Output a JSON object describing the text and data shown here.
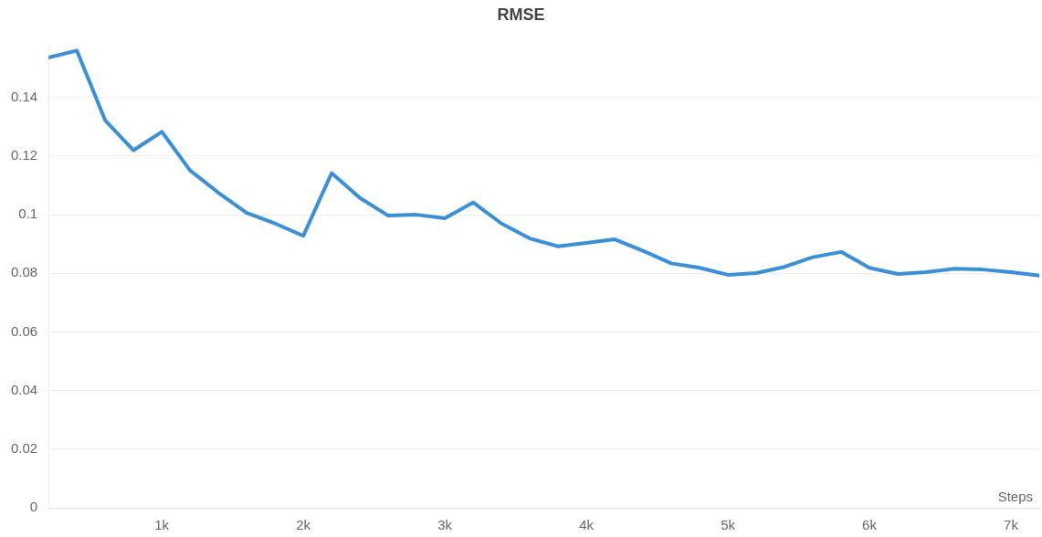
{
  "chart_data": {
    "type": "line",
    "title": "RMSE",
    "xlabel": "Steps",
    "x": [
      200,
      400,
      600,
      800,
      1000,
      1200,
      1400,
      1600,
      1800,
      2000,
      2200,
      2400,
      2600,
      2800,
      3000,
      3200,
      3400,
      3600,
      3800,
      4000,
      4200,
      4400,
      4600,
      4800,
      5000,
      5200,
      5400,
      5600,
      5800,
      6000,
      6200,
      6400,
      6600,
      6800,
      7000,
      7200
    ],
    "series": [
      {
        "color": "#3a8fd9",
        "values": [
          0.1536,
          0.156,
          0.1322,
          0.122,
          0.1283,
          0.1151,
          0.1075,
          0.1006,
          0.097,
          0.0928,
          0.1142,
          0.1057,
          0.0997,
          0.1,
          0.0988,
          0.1042,
          0.097,
          0.0919,
          0.0892,
          0.0904,
          0.0916,
          0.0877,
          0.0834,
          0.0819,
          0.0795,
          0.0801,
          0.0822,
          0.0855,
          0.0873,
          0.0819,
          0.0798,
          0.0804,
          0.0816,
          0.0813,
          0.0804,
          0.0792
        ]
      }
    ],
    "xlim": [
      200,
      7200
    ],
    "ylim": [
      0,
      0.158
    ],
    "xticks": [
      {
        "value": 1000,
        "label": "1k"
      },
      {
        "value": 2000,
        "label": "2k"
      },
      {
        "value": 3000,
        "label": "3k"
      },
      {
        "value": 4000,
        "label": "4k"
      },
      {
        "value": 5000,
        "label": "5k"
      },
      {
        "value": 6000,
        "label": "6k"
      },
      {
        "value": 7000,
        "label": "7k"
      }
    ],
    "yticks": [
      0,
      0.02,
      0.04,
      0.06,
      0.08,
      0.1,
      0.12,
      0.14
    ],
    "grid": "y",
    "legend": false,
    "marker": "none",
    "line_style": "solid"
  }
}
